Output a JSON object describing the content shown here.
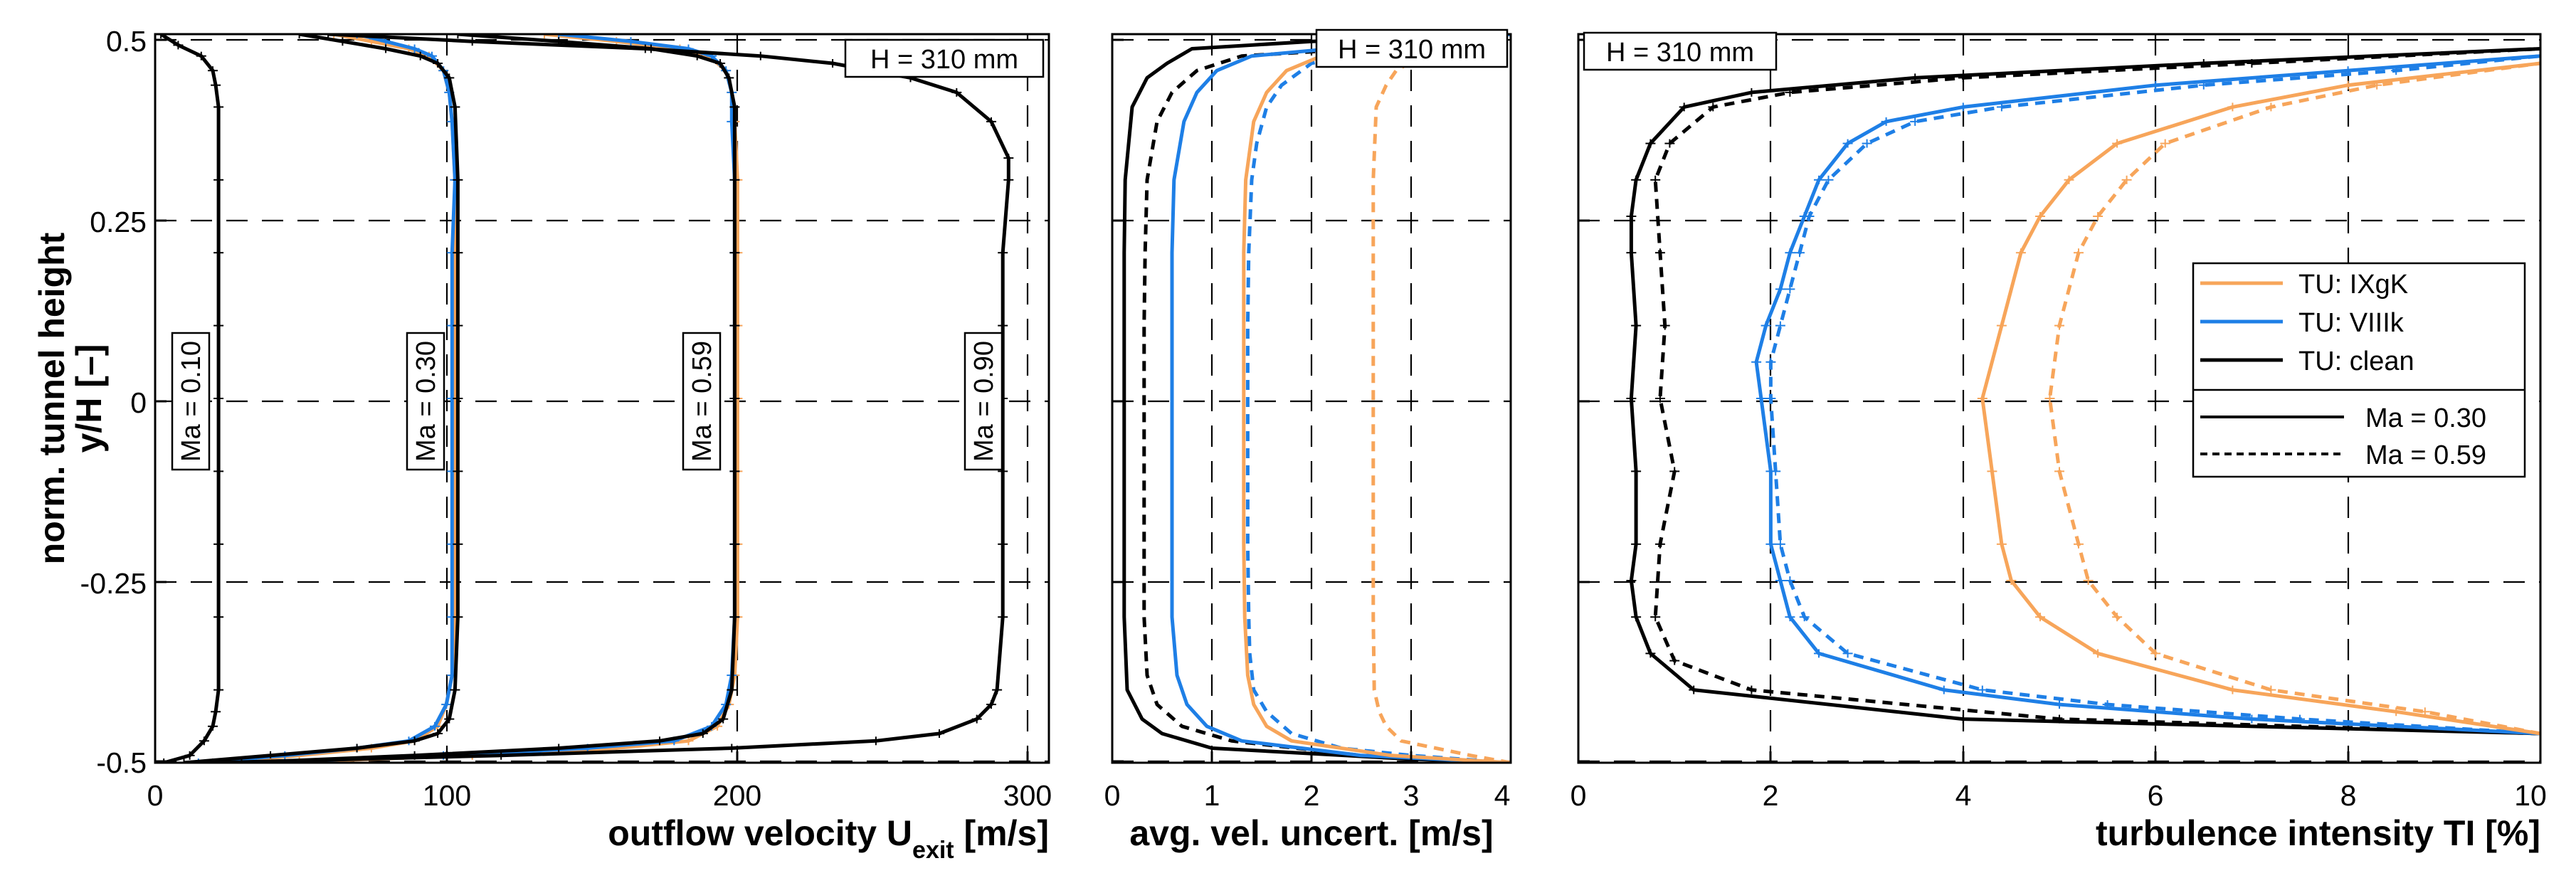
{
  "colors": {
    "IXgK": "#F7A55A",
    "VIIIk": "#1E7FE6",
    "clean": "#000000"
  },
  "chart_data": [
    {
      "type": "line",
      "xlabel": "outflow velocity U",
      "xlabel_sub": "exit",
      "xlabel_unit": " [m/s]",
      "ylabel": "norm. tunnel height",
      "ylabel2": "y/H [–]",
      "xlim": [
        0,
        310
      ],
      "ylim": [
        -0.5,
        0.5
      ],
      "xticks": [
        0,
        100,
        200,
        300
      ],
      "xtick_labels": [
        "0",
        "100",
        "200",
        "300"
      ],
      "yticks": [
        -0.5,
        -0.25,
        0,
        0.25,
        0.5
      ],
      "ytick_labels": [
        "-0.5",
        "-0.25",
        "0",
        "0.25",
        "0.5"
      ],
      "grid": true,
      "box_label": "H = 310 mm",
      "annotations": [
        {
          "text": "Ma = 0.10",
          "x": 25,
          "y": 0
        },
        {
          "text": "Ma = 0.30",
          "x": 95,
          "y": 0
        },
        {
          "text": "Ma = 0.59",
          "x": 185,
          "y": 0
        },
        {
          "text": "Ma = 0.90",
          "x": 280,
          "y": 0
        }
      ],
      "series": [
        {
          "color": "clean",
          "dash": false,
          "errorbars": true,
          "y": [
            -0.5,
            -0.49,
            -0.47,
            -0.45,
            -0.43,
            -0.4,
            -0.3,
            -0.2,
            -0.1,
            0,
            0.1,
            0.2,
            0.3,
            0.4,
            0.43,
            0.45,
            0.47,
            0.485,
            0.5
          ],
          "x": [
            3,
            12,
            17,
            20,
            21,
            22,
            22,
            22,
            22,
            22,
            22,
            22,
            22,
            22,
            21,
            20,
            16,
            8,
            2
          ]
        },
        {
          "color": "IXgK",
          "dash": false,
          "errorbars": true,
          "y": [
            -0.5,
            -0.49,
            -0.48,
            -0.47,
            -0.45,
            -0.42,
            -0.38,
            -0.3,
            -0.2,
            -0.1,
            0,
            0.1,
            0.2,
            0.3,
            0.38,
            0.42,
            0.45,
            0.47,
            0.48,
            0.49,
            0.5
          ],
          "x": [
            20,
            50,
            75,
            90,
            98,
            101,
            103,
            104,
            104,
            104,
            104,
            104,
            104,
            104,
            103,
            102,
            100,
            95,
            88,
            75,
            62
          ]
        },
        {
          "color": "VIIIk",
          "dash": false,
          "errorbars": true,
          "y": [
            -0.5,
            -0.49,
            -0.48,
            -0.47,
            -0.45,
            -0.42,
            -0.38,
            -0.3,
            -0.2,
            -0.1,
            0,
            0.1,
            0.2,
            0.3,
            0.38,
            0.42,
            0.45,
            0.47,
            0.48,
            0.49,
            0.5
          ],
          "x": [
            15,
            45,
            70,
            88,
            97,
            101,
            103,
            103,
            103,
            103,
            103,
            103,
            103,
            104,
            103,
            102,
            100,
            96,
            90,
            80,
            70
          ]
        },
        {
          "color": "clean",
          "dash": false,
          "errorbars": true,
          "y": [
            -0.5,
            -0.49,
            -0.48,
            -0.47,
            -0.46,
            -0.44,
            -0.4,
            -0.3,
            -0.2,
            -0.1,
            0,
            0.1,
            0.2,
            0.3,
            0.4,
            0.44,
            0.46,
            0.47,
            0.48,
            0.49,
            0.5
          ],
          "x": [
            10,
            40,
            70,
            90,
            98,
            102,
            104,
            105,
            105,
            105,
            105,
            105,
            105,
            105,
            104,
            102,
            98,
            92,
            80,
            65,
            50
          ]
        },
        {
          "color": "IXgK",
          "dash": false,
          "errorbars": true,
          "y": [
            -0.5,
            -0.49,
            -0.48,
            -0.47,
            -0.45,
            -0.42,
            -0.38,
            -0.3,
            -0.2,
            -0.1,
            0,
            0.1,
            0.2,
            0.3,
            0.38,
            0.42,
            0.45,
            0.47,
            0.48,
            0.49,
            0.5
          ],
          "x": [
            40,
            110,
            160,
            185,
            195,
            199,
            201,
            202,
            202,
            202,
            202,
            202,
            202,
            202,
            201,
            200,
            198,
            192,
            182,
            160,
            135
          ]
        },
        {
          "color": "VIIIk",
          "dash": false,
          "errorbars": true,
          "y": [
            -0.5,
            -0.49,
            -0.48,
            -0.47,
            -0.45,
            -0.42,
            -0.38,
            -0.3,
            -0.2,
            -0.1,
            0,
            0.1,
            0.2,
            0.3,
            0.38,
            0.42,
            0.45,
            0.47,
            0.48,
            0.49,
            0.5
          ],
          "x": [
            35,
            100,
            150,
            180,
            193,
            198,
            200,
            201,
            201,
            201,
            201,
            201,
            201,
            201,
            200,
            200,
            198,
            193,
            185,
            165,
            140
          ]
        },
        {
          "color": "clean",
          "dash": false,
          "errorbars": true,
          "y": [
            -0.5,
            -0.49,
            -0.48,
            -0.47,
            -0.46,
            -0.44,
            -0.4,
            -0.3,
            -0.2,
            -0.1,
            0,
            0.1,
            0.2,
            0.3,
            0.4,
            0.44,
            0.46,
            0.47,
            0.48,
            0.49,
            0.5
          ],
          "x": [
            30,
            90,
            140,
            175,
            190,
            197,
            200,
            201,
            201,
            201,
            201,
            201,
            201,
            201,
            201,
            199,
            196,
            188,
            172,
            140,
            105
          ]
        },
        {
          "color": "clean",
          "dash": false,
          "errorbars": true,
          "y": [
            -0.5,
            -0.49,
            -0.48,
            -0.47,
            -0.46,
            -0.44,
            -0.42,
            -0.4,
            -0.3,
            -0.2,
            -0.1,
            0,
            0.1,
            0.2,
            0.3,
            0.33,
            0.38,
            0.42,
            0.44,
            0.46,
            0.47,
            0.48,
            0.49,
            0.5
          ],
          "x": [
            20,
            120,
            200,
            250,
            272,
            285,
            290,
            292,
            294,
            294,
            294,
            294,
            294,
            294,
            296,
            296,
            290,
            278,
            262,
            235,
            210,
            170,
            110,
            60
          ]
        }
      ]
    },
    {
      "type": "line",
      "xlabel": "avg. vel. uncert. [m/s]",
      "xlim": [
        0,
        4
      ],
      "ylim": [
        -0.5,
        0.5
      ],
      "xticks": [
        0,
        1,
        2,
        3,
        4
      ],
      "xtick_labels": [
        "0",
        "1",
        "2",
        "3",
        "4"
      ],
      "yticks": [
        -0.5,
        -0.25,
        0,
        0.25,
        0.5
      ],
      "grid": true,
      "box_label": "H = 310 mm",
      "series": [
        {
          "color": "clean",
          "dash": false,
          "y": [
            -0.5,
            -0.495,
            -0.48,
            -0.46,
            -0.44,
            -0.4,
            -0.3,
            -0.2,
            -0.1,
            0,
            0.1,
            0.2,
            0.3,
            0.4,
            0.44,
            0.46,
            0.48,
            0.49,
            0.5
          ],
          "x": [
            4,
            3,
            1.0,
            0.5,
            0.3,
            0.15,
            0.12,
            0.12,
            0.12,
            0.12,
            0.12,
            0.12,
            0.13,
            0.2,
            0.35,
            0.55,
            0.8,
            2.0,
            4
          ]
        },
        {
          "color": "clean",
          "dash": true,
          "y": [
            -0.5,
            -0.49,
            -0.47,
            -0.45,
            -0.42,
            -0.38,
            -0.3,
            -0.2,
            -0.1,
            0,
            0.1,
            0.2,
            0.3,
            0.38,
            0.42,
            0.45,
            0.47,
            0.48,
            0.5
          ],
          "x": [
            4,
            2.5,
            1.2,
            0.7,
            0.45,
            0.35,
            0.32,
            0.32,
            0.32,
            0.32,
            0.32,
            0.33,
            0.35,
            0.45,
            0.6,
            0.85,
            1.3,
            2.5,
            4
          ]
        },
        {
          "color": "VIIIk",
          "dash": false,
          "y": [
            -0.5,
            -0.49,
            -0.47,
            -0.45,
            -0.42,
            -0.38,
            -0.3,
            -0.2,
            -0.1,
            0,
            0.1,
            0.2,
            0.3,
            0.38,
            0.42,
            0.45,
            0.47,
            0.48,
            0.5
          ],
          "x": [
            4,
            2.5,
            1.3,
            0.95,
            0.75,
            0.65,
            0.6,
            0.6,
            0.6,
            0.6,
            0.6,
            0.6,
            0.62,
            0.72,
            0.85,
            1.05,
            1.4,
            2.2,
            4
          ]
        },
        {
          "color": "VIIIk",
          "dash": true,
          "y": [
            -0.5,
            -0.49,
            -0.48,
            -0.46,
            -0.43,
            -0.4,
            -0.35,
            -0.3,
            -0.2,
            -0.1,
            0,
            0.1,
            0.2,
            0.3,
            0.35,
            0.4,
            0.43,
            0.46,
            0.48,
            0.5
          ],
          "x": [
            4,
            3,
            2.3,
            1.8,
            1.55,
            1.42,
            1.38,
            1.37,
            1.36,
            1.36,
            1.36,
            1.36,
            1.37,
            1.4,
            1.45,
            1.55,
            1.7,
            2.0,
            2.6,
            4
          ]
        },
        {
          "color": "IXgK",
          "dash": false,
          "y": [
            -0.5,
            -0.49,
            -0.47,
            -0.45,
            -0.42,
            -0.38,
            -0.3,
            -0.2,
            -0.1,
            0,
            0.1,
            0.2,
            0.3,
            0.38,
            0.42,
            0.45,
            0.47,
            0.5
          ],
          "x": [
            4,
            2.8,
            1.8,
            1.55,
            1.42,
            1.36,
            1.33,
            1.32,
            1.32,
            1.32,
            1.32,
            1.32,
            1.34,
            1.42,
            1.55,
            1.75,
            2.1,
            3.0
          ]
        },
        {
          "color": "IXgK",
          "dash": true,
          "y": [
            -0.5,
            -0.49,
            -0.47,
            -0.45,
            -0.43,
            -0.4,
            -0.3,
            -0.2,
            -0.1,
            0,
            0.1,
            0.2,
            0.3,
            0.4,
            0.43,
            0.45,
            0.47,
            0.5
          ],
          "x": [
            4,
            3.6,
            2.9,
            2.75,
            2.68,
            2.63,
            2.62,
            2.62,
            2.62,
            2.62,
            2.62,
            2.62,
            2.62,
            2.65,
            2.75,
            2.85,
            3.1,
            3.6
          ]
        }
      ]
    },
    {
      "type": "line",
      "xlabel": "turbulence intensity TI [%]",
      "xlim": [
        0,
        10
      ],
      "ylim": [
        -0.5,
        0.5
      ],
      "xticks": [
        0,
        2,
        4,
        6,
        8,
        10
      ],
      "xtick_labels": [
        "0",
        "2",
        "4",
        "6",
        "8",
        "10"
      ],
      "yticks": [
        -0.5,
        -0.25,
        0,
        0.25,
        0.5
      ],
      "grid": true,
      "box_label": "H = 310 mm",
      "legend": {
        "placement": "right",
        "entries": [
          {
            "label": "TU: IXgK",
            "color": "IXgK",
            "dash": false
          },
          {
            "label": "TU: VIIIk",
            "color": "VIIIk",
            "dash": false
          },
          {
            "label": "TU: clean",
            "color": "clean",
            "dash": false
          },
          {
            "label": "Ma = 0.30",
            "color": "clean",
            "dash": false
          },
          {
            "label": "Ma = 0.59",
            "color": "clean",
            "dash": true
          }
        ]
      },
      "series": [
        {
          "color": "clean",
          "dash": false,
          "errorbars": true,
          "y": [
            -0.46,
            -0.44,
            -0.4,
            -0.35,
            -0.3,
            -0.25,
            -0.2,
            -0.1,
            0,
            0.1,
            0.2,
            0.25,
            0.3,
            0.35,
            0.4,
            0.42,
            0.44,
            0.46,
            0.48
          ],
          "x": [
            10,
            4,
            1.2,
            0.75,
            0.6,
            0.55,
            0.6,
            0.6,
            0.55,
            0.6,
            0.55,
            0.55,
            0.6,
            0.75,
            1.1,
            1.8,
            3.5,
            6.5,
            10
          ]
        },
        {
          "color": "clean",
          "dash": true,
          "errorbars": true,
          "y": [
            -0.46,
            -0.44,
            -0.4,
            -0.36,
            -0.3,
            -0.2,
            -0.1,
            0,
            0.1,
            0.2,
            0.3,
            0.35,
            0.4,
            0.42,
            0.44,
            0.46,
            0.48
          ],
          "x": [
            10,
            5,
            1.8,
            1.0,
            0.8,
            0.85,
            1.0,
            0.85,
            0.9,
            0.85,
            0.8,
            0.95,
            1.4,
            2.2,
            4,
            7,
            10
          ]
        },
        {
          "color": "VIIIk",
          "dash": false,
          "errorbars": true,
          "y": [
            -0.46,
            -0.44,
            -0.42,
            -0.4,
            -0.35,
            -0.3,
            -0.25,
            -0.2,
            -0.1,
            0,
            0.05,
            0.1,
            0.15,
            0.2,
            0.25,
            0.3,
            0.35,
            0.38,
            0.4,
            0.43,
            0.45,
            0.47
          ],
          "x": [
            10,
            7,
            5,
            3.8,
            2.5,
            2.2,
            2.1,
            2.0,
            2.0,
            1.9,
            1.85,
            1.95,
            2.1,
            2.2,
            2.35,
            2.5,
            2.8,
            3.2,
            4.0,
            6,
            8,
            10
          ]
        },
        {
          "color": "VIIIk",
          "dash": true,
          "errorbars": true,
          "y": [
            -0.46,
            -0.44,
            -0.42,
            -0.4,
            -0.35,
            -0.3,
            -0.25,
            -0.2,
            -0.1,
            0,
            0.05,
            0.1,
            0.15,
            0.2,
            0.25,
            0.3,
            0.35,
            0.38,
            0.4,
            0.43,
            0.45,
            0.47
          ],
          "x": [
            10,
            7.5,
            5.5,
            4.2,
            2.8,
            2.35,
            2.2,
            2.1,
            2.05,
            2.0,
            2.0,
            2.1,
            2.2,
            2.3,
            2.4,
            2.6,
            3.0,
            3.5,
            4.4,
            6.5,
            8.5,
            10
          ]
        },
        {
          "color": "IXgK",
          "dash": false,
          "errorbars": true,
          "y": [
            -0.46,
            -0.43,
            -0.4,
            -0.35,
            -0.3,
            -0.25,
            -0.2,
            -0.1,
            0,
            0.1,
            0.2,
            0.25,
            0.3,
            0.35,
            0.4,
            0.43,
            0.46
          ],
          "x": [
            10,
            8.5,
            6.8,
            5.4,
            4.8,
            4.5,
            4.4,
            4.3,
            4.2,
            4.4,
            4.6,
            4.8,
            5.1,
            5.6,
            6.8,
            8.0,
            10
          ]
        },
        {
          "color": "IXgK",
          "dash": true,
          "errorbars": true,
          "y": [
            -0.46,
            -0.43,
            -0.4,
            -0.35,
            -0.3,
            -0.25,
            -0.2,
            -0.1,
            0,
            0.1,
            0.2,
            0.25,
            0.3,
            0.35,
            0.4,
            0.43,
            0.46
          ],
          "x": [
            10,
            8.8,
            7.2,
            6.0,
            5.6,
            5.3,
            5.2,
            5.0,
            4.9,
            5.0,
            5.2,
            5.4,
            5.7,
            6.1,
            7.2,
            8.3,
            10
          ]
        }
      ]
    }
  ]
}
